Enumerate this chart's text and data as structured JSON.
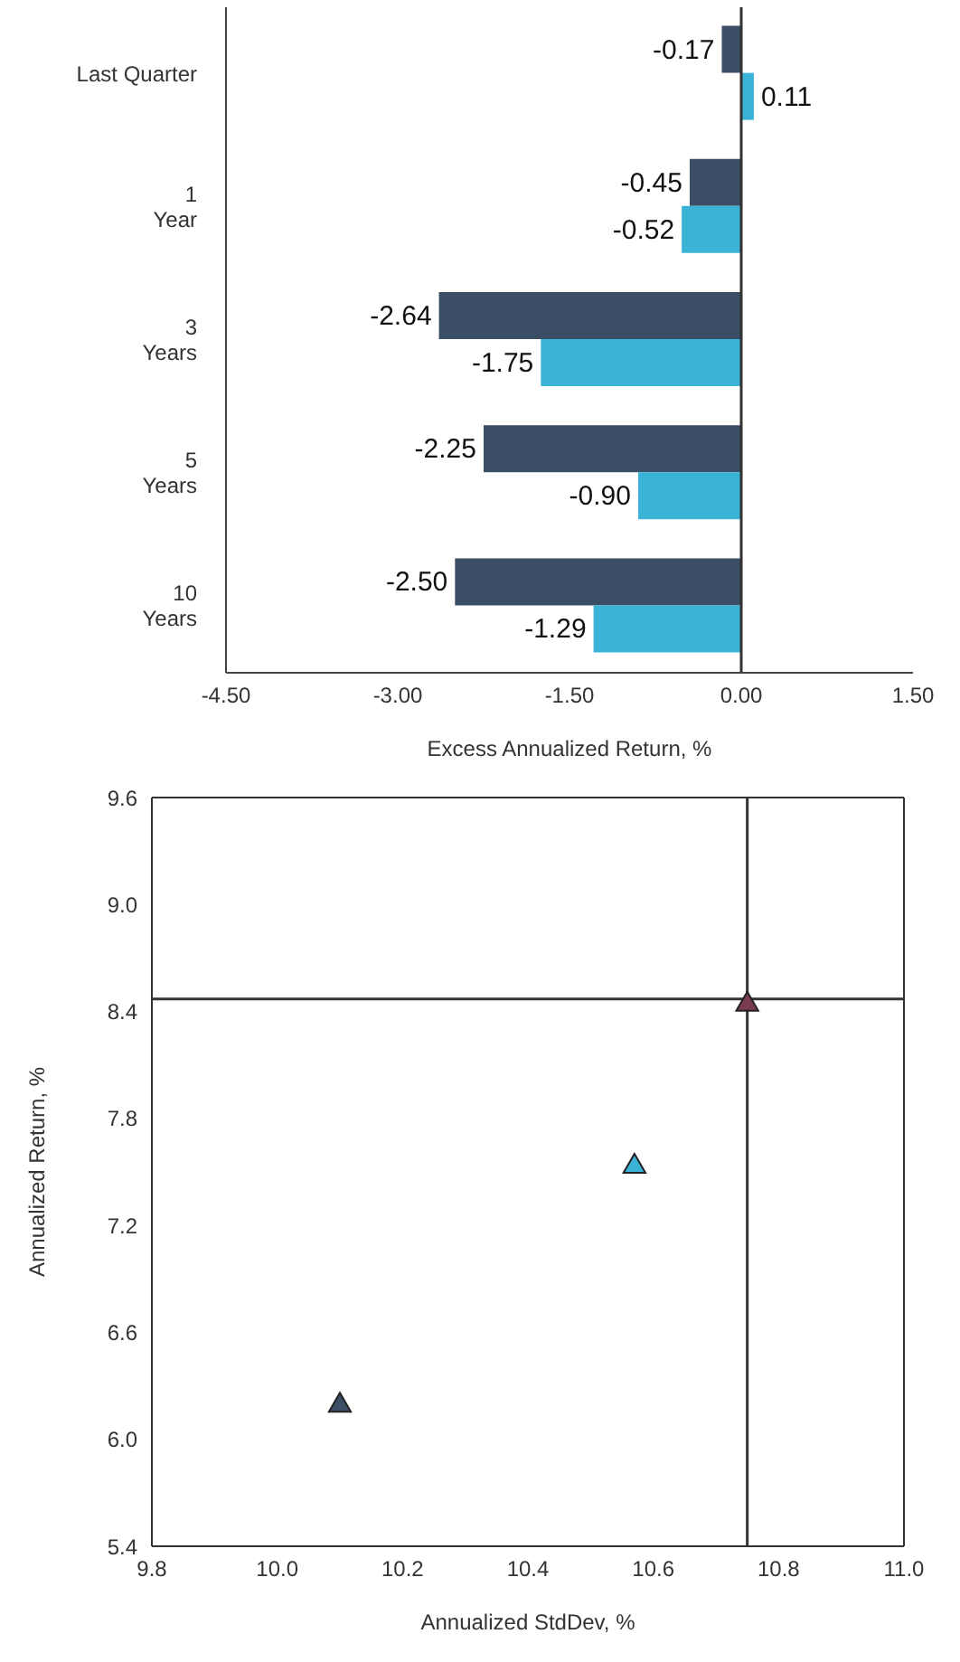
{
  "chart_data": [
    {
      "type": "bar",
      "orientation": "horizontal",
      "xlabel": "Excess Annualized Return, %",
      "categories": [
        "Last Quarter",
        "1\nYear",
        "3\nYears",
        "5\nYears",
        "10\nYears"
      ],
      "series": [
        {
          "color": "#3a4f66",
          "values": [
            -0.17,
            -0.45,
            -2.64,
            -2.25,
            -2.5
          ],
          "value_labels": [
            "-0.17",
            "-0.45",
            "-2.64",
            "-2.25",
            "-2.50"
          ]
        },
        {
          "color": "#3bb3d6",
          "values": [
            0.11,
            -0.52,
            -1.75,
            -0.9,
            -1.29
          ],
          "value_labels": [
            "0.11",
            "-0.52",
            "-1.75",
            "-0.90",
            "-1.29"
          ]
        }
      ],
      "xlim": [
        -4.5,
        1.5
      ],
      "xticks": [
        {
          "value": -4.5,
          "label": "-4.50"
        },
        {
          "value": -3,
          "label": "-3.00"
        },
        {
          "value": -1.5,
          "label": "-1.50"
        },
        {
          "value": 0,
          "label": "0.00"
        },
        {
          "value": 1.5,
          "label": "1.50"
        }
      ],
      "ref_lines": [
        {
          "axis": "x",
          "value": 0,
          "color": "#333333"
        }
      ],
      "grid": false,
      "legend": false
    },
    {
      "type": "scatter",
      "xlabel": "Annualized StdDev, %",
      "ylabel": "Annualized Return, %",
      "marker": "triangle",
      "x": [
        10.1,
        10.57,
        10.75
      ],
      "values": [
        6.19,
        7.53,
        8.44
      ],
      "colors": [
        "#3a4f66",
        "#3bb3d6",
        "#7a3a52"
      ],
      "xlim": [
        9.8,
        11.0
      ],
      "xticks": [
        9.8,
        {
          "value": 10,
          "label": "10.0"
        },
        10.2,
        10.4,
        10.6,
        10.8,
        {
          "value": 11,
          "label": "11.0"
        }
      ],
      "ylim": [
        5.4,
        9.6
      ],
      "yticks": [
        5.4,
        {
          "value": 6,
          "label": "6.0"
        },
        6.6,
        7.2,
        7.8,
        8.4,
        {
          "value": 9,
          "label": "9.0"
        },
        9.6
      ],
      "ref_lines": [
        {
          "axis": "x",
          "value": 10.75,
          "color": "#333333"
        },
        {
          "axis": "y",
          "value": 8.47,
          "color": "#333333"
        }
      ],
      "grid": false,
      "legend": false
    }
  ]
}
